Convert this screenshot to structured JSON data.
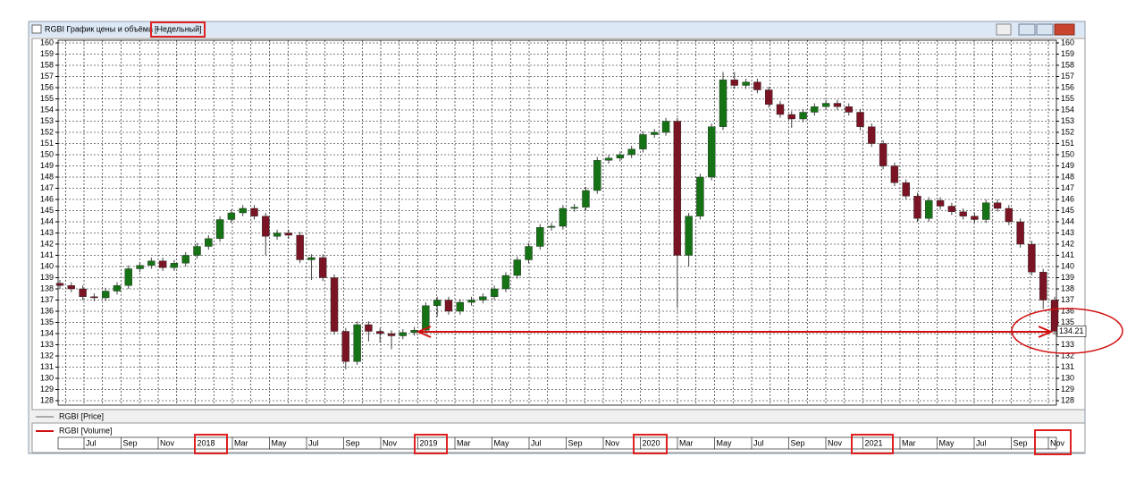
{
  "chart_data": {
    "type": "candlestick",
    "title": "RGBI График цены и объёма -",
    "subtitle": "[Недельный]",
    "legend": [
      "RGBI [Price]",
      "RGBI [Volume]"
    ],
    "up_color": "#157315",
    "down_color": "#7a1424",
    "ylim": [
      128,
      160
    ],
    "yticks": [
      128,
      129,
      130,
      131,
      132,
      133,
      134,
      135,
      136,
      137,
      138,
      139,
      140,
      141,
      142,
      143,
      144,
      145,
      146,
      147,
      148,
      149,
      150,
      151,
      152,
      153,
      154,
      155,
      156,
      157,
      158,
      159,
      160
    ],
    "grid": true,
    "timeline": [
      "Jul",
      "Sep",
      "Nov",
      "2018",
      "Mar",
      "May",
      "Jul",
      "Sep",
      "Nov",
      "2019",
      "Mar",
      "May",
      "Jul",
      "Sep",
      "Nov",
      "2020",
      "Mar",
      "May",
      "Jul",
      "Sep",
      "Nov",
      "2021",
      "Mar",
      "May",
      "Jul",
      "Sep",
      "Nov"
    ],
    "open": [
      138.5,
      138.3,
      138,
      137.3,
      137.2,
      137.8,
      138.3,
      139.8,
      140.1,
      140.5,
      139.9,
      140.3,
      141,
      141.8,
      142.5,
      144.2,
      144.8,
      145.2,
      144.5,
      142.7,
      143,
      142.8,
      140.6,
      140.8,
      139,
      134.2,
      131.5,
      134.8,
      134.2,
      134,
      133.8,
      134.1,
      134.3,
      136.5,
      137,
      136,
      136.8,
      137,
      137.3,
      138,
      139.2,
      140.6,
      141.8,
      143.5,
      143.6,
      145.2,
      145.3,
      146.8,
      149.5,
      149.7,
      150,
      150.5,
      151.8,
      152,
      153,
      141,
      144.5,
      148,
      152.5,
      156.7,
      156.2,
      156.5,
      155.8,
      154.5,
      153.6,
      153.2,
      153.8,
      154.3,
      154.6,
      154.3,
      153.8,
      152.5,
      151,
      149,
      147.5,
      146.3,
      144.3,
      145.9,
      145.4,
      144.9,
      144.5,
      144.2,
      145.7,
      145.2,
      144,
      142,
      139.5,
      137
    ],
    "high": [
      138.8,
      138.6,
      138.3,
      137.6,
      138.1,
      138.6,
      140.1,
      140.4,
      140.8,
      140.8,
      140.6,
      141.3,
      142.1,
      142.8,
      144.5,
      145.1,
      145.5,
      145.5,
      144.8,
      143.3,
      143.3,
      143.1,
      141.1,
      141.1,
      139.3,
      134.5,
      135.1,
      135.1,
      134.5,
      134.3,
      134.4,
      134.6,
      136.8,
      137.3,
      137.3,
      137.1,
      137.3,
      137.6,
      138.3,
      139.5,
      140.9,
      142.1,
      143.8,
      143.9,
      145.5,
      145.6,
      147.1,
      149.8,
      150,
      150.3,
      150.8,
      152.1,
      152.3,
      153.3,
      153.3,
      144.8,
      148.3,
      152.8,
      157.4,
      157.4,
      156.8,
      156.8,
      156.1,
      154.8,
      153.9,
      154.1,
      154.6,
      154.9,
      154.9,
      154.6,
      154.1,
      152.8,
      151.3,
      149.3,
      147.8,
      146.6,
      146.2,
      146.2,
      145.7,
      145.2,
      144.8,
      146,
      146,
      145.5,
      144.3,
      142.3,
      139.8,
      137.3
    ],
    "low": [
      138,
      137.7,
      137,
      136.9,
      136.9,
      137.5,
      138,
      139.5,
      139.8,
      139.6,
      139.6,
      140,
      140.7,
      141.5,
      142.2,
      143.9,
      144.5,
      144.2,
      141,
      142.4,
      142.5,
      140.3,
      138.8,
      138.7,
      133.9,
      130.8,
      131.2,
      133.3,
      133.2,
      132.6,
      133.5,
      133.8,
      134,
      135.5,
      135.7,
      135.7,
      136.5,
      136.7,
      137,
      137.7,
      138.9,
      140.3,
      141.5,
      143.2,
      143.3,
      144.9,
      145,
      146.5,
      149.2,
      149.4,
      149.7,
      150.2,
      151.5,
      151.7,
      136.3,
      140,
      144.2,
      147.7,
      152.2,
      155.9,
      155.9,
      155.5,
      154.2,
      153.3,
      152.4,
      152.9,
      153.5,
      154,
      154,
      153.5,
      152.2,
      150.7,
      148.7,
      147.2,
      146,
      144,
      144,
      145.1,
      144.6,
      144.2,
      143.9,
      143.9,
      144.9,
      143.7,
      141.7,
      139.2,
      136.2,
      133.9
    ],
    "close": [
      138.3,
      138,
      137.3,
      137.2,
      137.8,
      138.3,
      139.8,
      140.1,
      140.5,
      139.9,
      140.3,
      141,
      141.8,
      142.5,
      144.2,
      144.8,
      145.2,
      144.5,
      142.7,
      143,
      142.8,
      140.6,
      140.8,
      139,
      134.2,
      131.5,
      134.8,
      134.2,
      134,
      133.8,
      134.1,
      134.3,
      136.5,
      137,
      136,
      136.8,
      137,
      137.3,
      138,
      139.2,
      140.6,
      141.8,
      143.5,
      143.6,
      145.2,
      145.3,
      146.8,
      149.5,
      149.7,
      150,
      150.5,
      151.8,
      152,
      153,
      141,
      144.5,
      148,
      152.5,
      156.7,
      156.2,
      156.5,
      155.8,
      154.5,
      153.6,
      153.2,
      153.8,
      154.3,
      154.6,
      154.3,
      153.8,
      152.5,
      151,
      149,
      147.5,
      146.3,
      144.3,
      145.9,
      145.4,
      144.9,
      144.5,
      144.2,
      145.7,
      145.2,
      144,
      142,
      139.5,
      137,
      134.21
    ]
  }
}
